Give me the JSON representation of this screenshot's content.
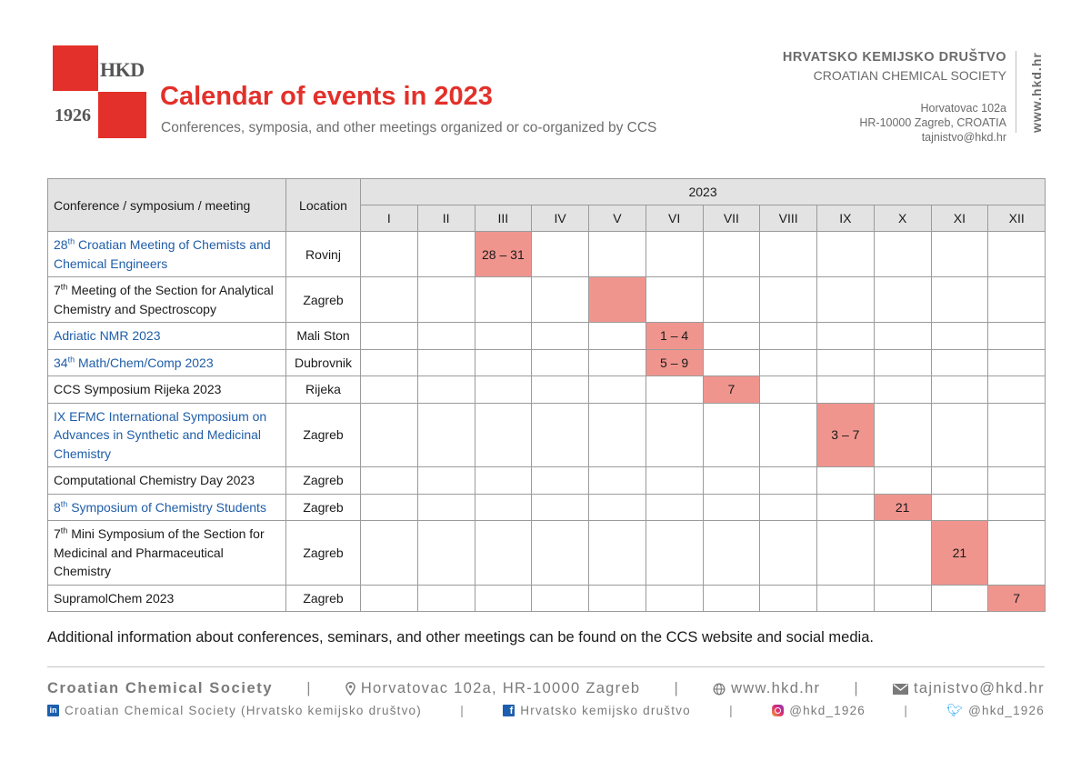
{
  "colors": {
    "accent_red": "#e3302a",
    "highlight": "#f0958e",
    "link_blue": "#1f5ea8",
    "text_gray": "#6b6b6b",
    "header_bg": "#e3e3e3"
  },
  "logo": {
    "abbr": "HKD",
    "year": "1926"
  },
  "title": {
    "prefix": "Calendar of events in ",
    "year": "2023"
  },
  "subtitle": "Conferences, symposia, and other meetings organized or co-organized by CCS",
  "org": {
    "name_hr": "HRVATSKO KEMIJSKO DRUŠTVO",
    "name_en": "CROATIAN CHEMICAL SOCIETY",
    "address_line1": "Horvatovac 102a",
    "address_line2": "HR-10000 Zagreb, CROATIA",
    "email": "tajnistvo@hkd.hr",
    "website_vertical": "www.hkd.hr"
  },
  "table": {
    "header_event": "Conference / symposium / meeting",
    "header_location": "Location",
    "header_year": "2023",
    "months": [
      "I",
      "II",
      "III",
      "IV",
      "V",
      "VI",
      "VII",
      "VIII",
      "IX",
      "X",
      "XI",
      "XII"
    ],
    "rows": [
      {
        "pre": "28",
        "sup": "th",
        "post": " Croatian Meeting of Chemists and Chemical Engineers",
        "link": true,
        "location": "Rovinj",
        "month": 3,
        "dates": "28 – 31",
        "lines": 2
      },
      {
        "pre": "7",
        "sup": "th",
        "post": " Meeting of the Section for Analytical Chemistry and Spectroscopy",
        "link": false,
        "location": "Zagreb",
        "month": 5,
        "dates": "",
        "lines": 2
      },
      {
        "pre": "Adriatic NMR 2023",
        "sup": "",
        "post": "",
        "link": true,
        "location": "Mali Ston",
        "month": 6,
        "dates": "1 – 4",
        "lines": 1
      },
      {
        "pre": "34",
        "sup": "th",
        "post": " Math/Chem/Comp 2023",
        "link": true,
        "location": "Dubrovnik",
        "month": 6,
        "dates": "5 – 9",
        "lines": 1
      },
      {
        "pre": "CCS Symposium Rijeka 2023",
        "sup": "",
        "post": "",
        "link": false,
        "location": "Rijeka",
        "month": 7,
        "dates": "7",
        "lines": 1
      },
      {
        "pre": "IX EFMC International Symposium on Advances in Synthetic and Medicinal Chemistry",
        "sup": "",
        "post": "",
        "link": true,
        "location": "Zagreb",
        "month": 9,
        "dates": "3 – 7",
        "lines": 3
      },
      {
        "pre": "Computational Chemistry Day 2023",
        "sup": "",
        "post": "",
        "link": false,
        "location": "Zagreb",
        "month": 0,
        "dates": "",
        "lines": 1
      },
      {
        "pre": "8",
        "sup": "th",
        "post": " Symposium of Chemistry Students",
        "link": true,
        "location": "Zagreb",
        "month": 10,
        "dates": "21",
        "lines": 1
      },
      {
        "pre": "7",
        "sup": "th",
        "post": " Mini Symposium of the Section for Medicinal and Pharmaceutical Chemistry",
        "link": false,
        "location": "Zagreb",
        "month": 11,
        "dates": "21",
        "lines": 3
      },
      {
        "pre": "SupramolChem 2023",
        "sup": "",
        "post": "",
        "link": false,
        "location": "Zagreb",
        "month": 12,
        "dates": "7",
        "lines": 1
      }
    ]
  },
  "note": "Additional information about conferences, seminars, and other meetings can be found on the CCS website and social media.",
  "footer": {
    "org_name": "Croatian Chemical Society",
    "address": "Horvatovac 102a, HR-10000 Zagreb",
    "website": "www.hkd.hr",
    "email": "tajnistvo@hkd.hr",
    "linkedin": "Croatian Chemical Society (Hrvatsko kemijsko društvo)",
    "facebook": "Hrvatsko kemijsko društvo",
    "instagram": "@hkd_1926",
    "twitter": "@hkd_1926",
    "separator": "|",
    "icons": {
      "location": "location-pin-icon",
      "web": "globe-icon",
      "mail": "envelope-icon",
      "linkedin": "linkedin-icon",
      "facebook": "facebook-icon",
      "instagram": "instagram-icon",
      "twitter": "twitter-icon"
    }
  }
}
